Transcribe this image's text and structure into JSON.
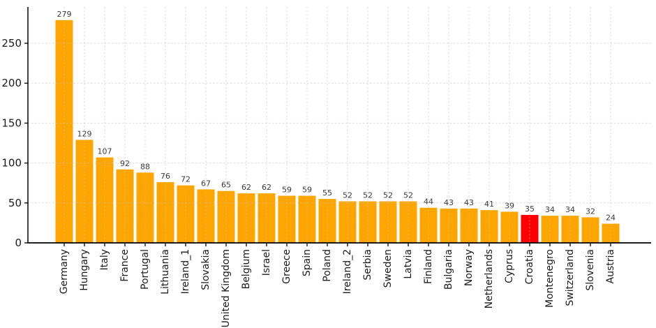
{
  "chart_data": {
    "type": "bar",
    "categories": [
      "Germany",
      "Hungary",
      "Italy",
      "France",
      "Portugal",
      "Lithuania",
      "Ireland_1",
      "Slovakia",
      "United Kingdom",
      "Belgium",
      "Israel",
      "Greece",
      "Spain",
      "Poland",
      "Ireland_2",
      "Serbia",
      "Sweden",
      "Latvia",
      "Finland",
      "Bulgaria",
      "Norway",
      "Netherlands",
      "Cyprus",
      "Croatia",
      "Montenegro",
      "Switzerland",
      "Slovenia",
      "Austria"
    ],
    "values": [
      279,
      129,
      107,
      92,
      88,
      76,
      72,
      67,
      65,
      62,
      62,
      59,
      59,
      55,
      52,
      52,
      52,
      52,
      44,
      43,
      43,
      41,
      39,
      35,
      34,
      34,
      32,
      24
    ],
    "bar_value_labels": [
      "279",
      "129",
      "107",
      "92",
      "88",
      "76",
      "72",
      "67",
      "65",
      "62",
      "62",
      "59",
      "59",
      "55",
      "52",
      "52",
      "52",
      "52",
      "44",
      "43",
      "43",
      "41",
      "39",
      "35",
      "34",
      "34",
      "32",
      "24"
    ],
    "highlight_category": "Croatia",
    "title": "",
    "xlabel": "",
    "ylabel": "",
    "yticks": [
      0,
      50,
      100,
      150,
      200,
      250
    ],
    "ytick_labels": [
      "0",
      "50",
      "100",
      "150",
      "200",
      "250"
    ],
    "ylim": [
      0,
      295
    ],
    "grid": "dashed horizontal and vertical, drawn over bars",
    "legend": "none",
    "colors": {
      "bar": "#FFA500",
      "highlight_bar": "#FF0000",
      "grid": "#c2c2c2",
      "axis": "#000000",
      "tick_label": "#1a1a1a",
      "value_label": "#3a3a3a",
      "background": "#ffffff"
    }
  }
}
